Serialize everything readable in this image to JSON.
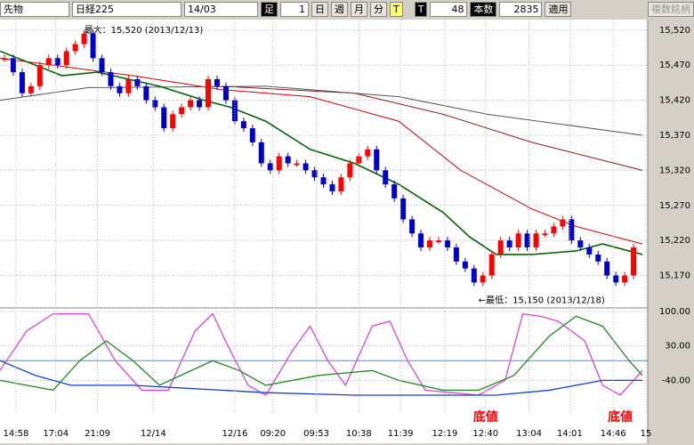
{
  "toolbar": {
    "instrument": "先物",
    "index": "日経225",
    "contract": "14/03",
    "bar_label": "足",
    "bar_count": "1",
    "periods": [
      "日",
      "週",
      "月",
      "分",
      "T"
    ],
    "tick_label": "T",
    "tick_value": "48",
    "count_label": "本数",
    "count_value": "2835",
    "apply": "適用",
    "multi": "複数銘柄"
  },
  "chart_data": [
    {
      "type": "candlestick",
      "values": [
        15480,
        15460,
        15430,
        15440,
        15470,
        15480,
        15470,
        15490,
        15500,
        15515,
        15480,
        15460,
        15440,
        15430,
        15450,
        15440,
        15420,
        15410,
        15380,
        15400,
        15410,
        15420,
        15410,
        15450,
        15440,
        15420,
        15390,
        15380,
        15360,
        15330,
        15320,
        15340,
        15330,
        15330,
        15320,
        15310,
        15300,
        15290,
        15310,
        15330,
        15340,
        15350,
        15320,
        15300,
        15280,
        15250,
        15230,
        15210,
        15220,
        15220,
        15210,
        15190,
        15180,
        15160,
        15170,
        15200,
        15220,
        15210,
        15230,
        15210,
        15230,
        15230,
        15240,
        15250,
        15220,
        15210,
        15200,
        15190,
        15170,
        15160,
        15170,
        15210
      ],
      "up_color": "#ff0000",
      "down_color": "#0000cc",
      "lines": [
        {
          "color": "#cc0000",
          "x": [
            -0.5,
            14.5,
            24.5,
            34.5,
            44.5,
            51.5,
            59.5,
            64.5,
            72
          ],
          "values": [
            15480,
            15455,
            15435,
            15425,
            15390,
            15320,
            15265,
            15240,
            15215
          ]
        },
        {
          "color": "#8b1a1a",
          "x": [
            24.5,
            39.5,
            49.5,
            59.5,
            72
          ],
          "values": [
            15440,
            15430,
            15400,
            15360,
            15320
          ]
        },
        {
          "color": "#555555",
          "x": [
            -0.5,
            9.5,
            29.5,
            44.5,
            54.5,
            72
          ],
          "values": [
            15420,
            15438,
            15440,
            15425,
            15400,
            15370
          ]
        },
        {
          "color": "#006600",
          "x": [
            -0.5,
            6.5,
            10.5,
            17.5,
            22.5,
            25.5,
            29.5,
            34.5,
            39.5,
            44.5,
            49.5,
            52.5,
            55.5,
            59.5,
            64.5,
            67.5,
            72
          ],
          "values": [
            15490,
            15455,
            15460,
            15440,
            15420,
            15410,
            15390,
            15350,
            15330,
            15300,
            15260,
            15225,
            15200,
            15200,
            15205,
            15215,
            15200
          ]
        }
      ],
      "xlim": [
        -0.5,
        72.6
      ],
      "ylim": [
        15125,
        15535
      ],
      "yticks": [
        {
          "value": 15520,
          "label": "15,520"
        },
        {
          "value": 15470,
          "label": "15,470"
        },
        {
          "value": 15420,
          "label": "15,420"
        },
        {
          "value": 15370,
          "label": "15,370"
        },
        {
          "value": 15320,
          "label": "15,320"
        },
        {
          "value": 15270,
          "label": "15,270"
        },
        {
          "value": 15220,
          "label": "15,220"
        },
        {
          "value": 15170,
          "label": "15,170"
        }
      ],
      "annotations": [
        {
          "text": "最大：15,520 (2013/12/13)",
          "x": 9,
          "y": 15520
        },
        {
          "text": "←最低：15,150 (2013/12/18)",
          "x": 53.5,
          "y": 15150
        }
      ]
    },
    {
      "type": "line",
      "xlim": [
        -0.5,
        72.6
      ],
      "ylim": [
        -108,
        107
      ],
      "yticks": [
        {
          "value": 100,
          "label": "100.00"
        },
        {
          "value": 30,
          "label": "30.00"
        },
        {
          "value": -40,
          "label": "-40.00"
        }
      ],
      "reference_line": 0,
      "series": [
        {
          "color": "#dd44dd",
          "x": [
            -0.5,
            2.5,
            5.5,
            9.5,
            12.5,
            15.5,
            18.5,
            21.5,
            23.5,
            25.5,
            27.5,
            29.5,
            32.5,
            34.5,
            36.5,
            38.5,
            41.5,
            43.5,
            45.5,
            47.5,
            53.5,
            56.5,
            58.5,
            60.5,
            62.5,
            65.5,
            67.5,
            69.5,
            72
          ],
          "values": [
            -20,
            60,
            95,
            95,
            0,
            -60,
            -60,
            60,
            95,
            20,
            -50,
            -70,
            20,
            70,
            0,
            -50,
            70,
            80,
            0,
            -60,
            -70,
            -40,
            95,
            90,
            80,
            40,
            -50,
            -70,
            -20
          ]
        },
        {
          "color": "#228822",
          "x": [
            -0.5,
            5.5,
            8.5,
            11.5,
            14.5,
            17.5,
            23.5,
            26.5,
            29.5,
            35.5,
            41.5,
            44.5,
            49.5,
            53.5,
            57.5,
            61.5,
            64.5,
            67.5,
            70.5,
            72
          ],
          "values": [
            -40,
            -60,
            0,
            40,
            0,
            -50,
            0,
            -20,
            -50,
            -30,
            -20,
            -40,
            -60,
            -60,
            -30,
            50,
            90,
            70,
            0,
            -30
          ]
        },
        {
          "color": "#1144cc",
          "x": [
            -0.5,
            3.5,
            7.5,
            14.5,
            19.5,
            29.5,
            39.5,
            49.5,
            55.5,
            61.5,
            67.5,
            72
          ],
          "values": [
            0,
            -30,
            -50,
            -50,
            -55,
            -65,
            -70,
            -70,
            -70,
            -60,
            -40,
            -40
          ]
        }
      ],
      "xticks": [
        {
          "value": 1.3,
          "label": "14:58"
        },
        {
          "value": 5.8,
          "label": "17:04"
        },
        {
          "value": 10.5,
          "label": "21:09"
        },
        {
          "value": 16.8,
          "label": "12/14"
        },
        {
          "value": 26,
          "label": "12/16"
        },
        {
          "value": 30.3,
          "label": "09:20"
        },
        {
          "value": 35.2,
          "label": "09:53"
        },
        {
          "value": 40,
          "label": "10:38"
        },
        {
          "value": 44.7,
          "label": "11:39"
        },
        {
          "value": 49.7,
          "label": "12:19"
        },
        {
          "value": 54.3,
          "label": "12:40"
        },
        {
          "value": 59.2,
          "label": "13:04"
        },
        {
          "value": 63.8,
          "label": "14:01"
        },
        {
          "value": 68.7,
          "label": "14:46"
        },
        {
          "value": 72.4,
          "label": "15"
        }
      ],
      "annotations": [
        {
          "text": "底値",
          "x": 54.3
        },
        {
          "text": "底値",
          "x": 69.5
        }
      ]
    }
  ]
}
